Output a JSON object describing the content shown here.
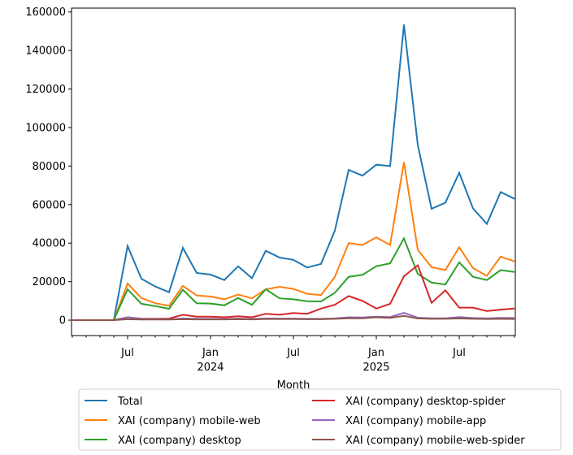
{
  "chart_data": {
    "type": "line",
    "title": "",
    "xlabel": "Month",
    "ylabel": "",
    "ylim": [
      -8000,
      162000
    ],
    "yticks": [
      0,
      20000,
      40000,
      60000,
      80000,
      100000,
      120000,
      140000,
      160000
    ],
    "ytick_labels": [
      "0",
      "20000",
      "40000",
      "60000",
      "80000",
      "100000",
      "120000",
      "140000",
      "160000"
    ],
    "xtick_labels": [
      {
        "index": 4,
        "label": "Jul"
      },
      {
        "index": 10,
        "label": "Jan",
        "sub": "2024"
      },
      {
        "index": 16,
        "label": "Jul"
      },
      {
        "index": 22,
        "label": "Jan",
        "sub": "2025"
      },
      {
        "index": 28,
        "label": "Jul"
      }
    ],
    "x": [
      "2023-03",
      "2023-04",
      "2023-05",
      "2023-06",
      "2023-07",
      "2023-08",
      "2023-09",
      "2023-10",
      "2023-11",
      "2023-12",
      "2024-01",
      "2024-02",
      "2024-03",
      "2024-04",
      "2024-05",
      "2024-06",
      "2024-07",
      "2024-08",
      "2024-09",
      "2024-10",
      "2024-11",
      "2024-12",
      "2025-01",
      "2025-02",
      "2025-03",
      "2025-04",
      "2025-05",
      "2025-06",
      "2025-07",
      "2025-08",
      "2025-09",
      "2025-10",
      "2025-11"
    ],
    "legend_position": "below",
    "series": [
      {
        "name": "Total",
        "color": "#1f77b4",
        "values": [
          0,
          0,
          0,
          0,
          38500,
          21500,
          17500,
          14500,
          37500,
          24500,
          23700,
          20800,
          28000,
          21800,
          36000,
          32500,
          31300,
          27300,
          29200,
          46500,
          78000,
          75000,
          80700,
          80000,
          153500,
          91000,
          57800,
          61000,
          76500,
          58000,
          50000,
          66500,
          63000
        ]
      },
      {
        "name": "XAI (company) mobile-web",
        "color": "#ff7f0e",
        "values": [
          0,
          0,
          0,
          0,
          19000,
          11500,
          8800,
          7500,
          17800,
          12800,
          12300,
          10800,
          13300,
          11300,
          16000,
          17300,
          16200,
          13700,
          13000,
          22500,
          40000,
          39000,
          43000,
          39000,
          82000,
          36500,
          27500,
          26000,
          37800,
          27000,
          23000,
          33000,
          30500
        ]
      },
      {
        "name": "XAI (company) desktop",
        "color": "#2ca02c",
        "values": [
          0,
          0,
          0,
          0,
          16000,
          8500,
          7300,
          5900,
          15800,
          8800,
          8600,
          7700,
          11500,
          8000,
          16000,
          11300,
          10800,
          9800,
          9700,
          14200,
          22500,
          23500,
          28000,
          29500,
          42500,
          24000,
          19500,
          18500,
          30000,
          22500,
          20800,
          26000,
          25000
        ]
      },
      {
        "name": "XAI (company) desktop-spider",
        "color": "#d62728",
        "values": [
          0,
          0,
          0,
          0,
          1500,
          800,
          700,
          800,
          2800,
          1800,
          1800,
          1500,
          2000,
          1500,
          3300,
          2800,
          3700,
          3300,
          6000,
          8000,
          12500,
          10000,
          6000,
          8500,
          22800,
          28500,
          9000,
          15500,
          6500,
          6500,
          4700,
          5500,
          6000
        ]
      },
      {
        "name": "XAI (company) mobile-app",
        "color": "#9467bd",
        "values": [
          0,
          0,
          0,
          0,
          1500,
          700,
          500,
          400,
          900,
          700,
          700,
          600,
          800,
          600,
          900,
          800,
          800,
          700,
          700,
          900,
          1500,
          1400,
          1800,
          1600,
          3800,
          1300,
          1000,
          1000,
          1600,
          1100,
          900,
          1200,
          1100
        ]
      },
      {
        "name": "XAI (company) mobile-web-spider",
        "color": "#8c564b",
        "values": [
          0,
          0,
          0,
          0,
          500,
          300,
          300,
          300,
          500,
          400,
          400,
          400,
          500,
          400,
          600,
          600,
          600,
          500,
          500,
          700,
          1000,
          1000,
          1500,
          1200,
          2200,
          900,
          700,
          700,
          900,
          700,
          600,
          700,
          600
        ]
      }
    ]
  }
}
